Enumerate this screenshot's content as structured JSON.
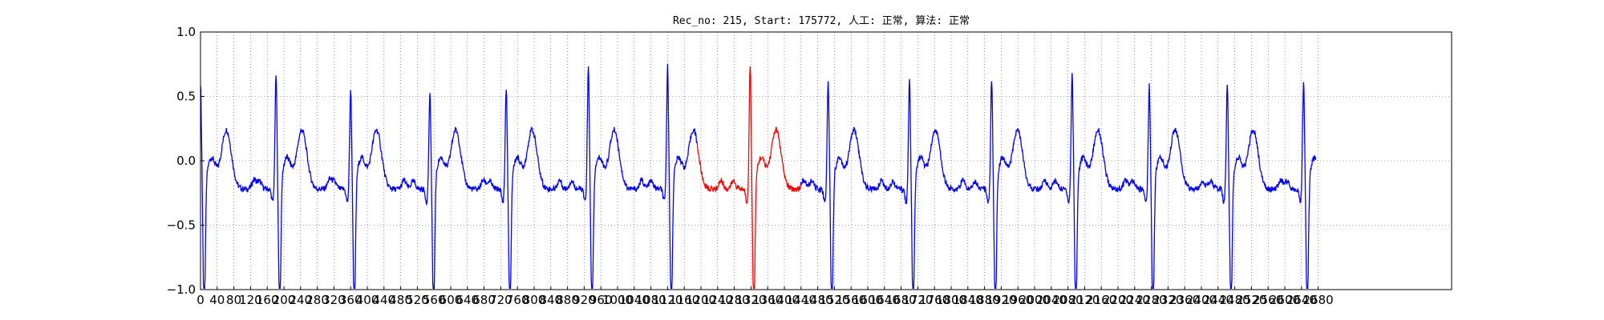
{
  "chart_data": {
    "type": "line",
    "title": "Rec_no: 215, Start: 175772, 人工: 正常, 算法: 正常",
    "xlabel": "",
    "ylabel": "",
    "xlim": [
      0,
      3000
    ],
    "ylim": [
      -1.0,
      1.0
    ],
    "ytick_values": [
      1.0,
      0.5,
      0.0,
      -0.5,
      -1.0
    ],
    "ytick_labels": [
      "1.0",
      "0.5",
      "0.0",
      "−0.5",
      "−1.0"
    ],
    "xtick_step": 40,
    "xtick_max": 2680,
    "grid": true,
    "colors": {
      "normal": "#0000ff",
      "highlight": "#ff0000",
      "grid": "#555555"
    },
    "r_peaks": [
      [
        0,
        0.82
      ],
      [
        181,
        0.88
      ],
      [
        360,
        0.77
      ],
      [
        550,
        0.74
      ],
      [
        733,
        0.78
      ],
      [
        930,
        0.95
      ],
      [
        1120,
        0.95
      ],
      [
        1318,
        0.96
      ],
      [
        1505,
        0.83
      ],
      [
        1700,
        0.84
      ],
      [
        1897,
        0.85
      ],
      [
        2090,
        0.9
      ],
      [
        2275,
        0.8
      ],
      [
        2462,
        0.81
      ],
      [
        2645,
        0.83
      ]
    ],
    "highlight_range": [
      1190,
      1440
    ],
    "x_end": 2675,
    "baseline": -0.22
  }
}
